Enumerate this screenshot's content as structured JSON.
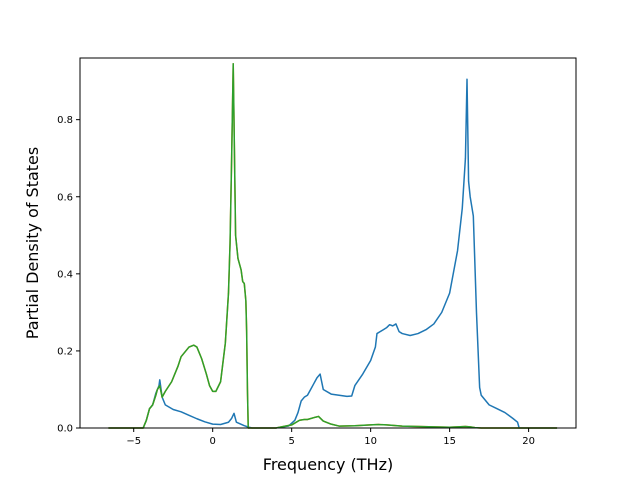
{
  "chart_data": {
    "type": "line",
    "title": "",
    "xlabel": "Frequency (THz)",
    "ylabel": "Partial Density of States",
    "xlim": [
      -8.4,
      23.0
    ],
    "ylim": [
      0,
      0.96
    ],
    "xticks": [
      -5,
      0,
      5,
      10,
      15,
      20
    ],
    "yticks": [
      0.0,
      0.2,
      0.4,
      0.6,
      0.8
    ],
    "xtick_labels": [
      "−5",
      "0",
      "5",
      "10",
      "15",
      "20"
    ],
    "ytick_labels": [
      "0.0",
      "0.2",
      "0.4",
      "0.6",
      "0.8"
    ],
    "grid": false,
    "legend": false,
    "series": [
      {
        "color": "#1f77b4",
        "x": [
          -6.6,
          -4.4,
          -4.2,
          -4.0,
          -3.8,
          -3.6,
          -3.4,
          -3.35,
          -3.2,
          -3.0,
          -2.5,
          -2.0,
          -1.5,
          -1.0,
          -0.5,
          0.0,
          0.5,
          1.0,
          1.2,
          1.35,
          1.5,
          2.0,
          2.3,
          2.5,
          3.0,
          4.0,
          4.8,
          5.2,
          5.4,
          5.6,
          5.8,
          6.0,
          6.2,
          6.4,
          6.6,
          6.8,
          7.0,
          7.5,
          8.0,
          8.5,
          8.8,
          9.0,
          9.5,
          10.0,
          10.3,
          10.4,
          10.6,
          10.8,
          11.0,
          11.2,
          11.4,
          11.6,
          11.8,
          12.0,
          12.5,
          13.0,
          13.5,
          14.0,
          14.5,
          15.0,
          15.5,
          15.8,
          16.0,
          16.1,
          16.2,
          16.3,
          16.5,
          16.7,
          16.9,
          17.0,
          17.5,
          18.0,
          18.5,
          19.0,
          19.3,
          19.4,
          20.0,
          21.8
        ],
        "y": [
          0.0,
          0.0,
          0.02,
          0.05,
          0.06,
          0.09,
          0.11,
          0.125,
          0.08,
          0.06,
          0.048,
          0.042,
          0.033,
          0.024,
          0.016,
          0.01,
          0.009,
          0.015,
          0.025,
          0.038,
          0.015,
          0.006,
          0.002,
          0.0,
          0.0,
          0.0,
          0.005,
          0.02,
          0.04,
          0.07,
          0.08,
          0.085,
          0.1,
          0.115,
          0.13,
          0.14,
          0.1,
          0.088,
          0.085,
          0.082,
          0.083,
          0.11,
          0.14,
          0.175,
          0.21,
          0.245,
          0.25,
          0.255,
          0.26,
          0.268,
          0.265,
          0.27,
          0.25,
          0.245,
          0.24,
          0.245,
          0.255,
          0.27,
          0.3,
          0.35,
          0.46,
          0.57,
          0.7,
          0.905,
          0.64,
          0.6,
          0.55,
          0.3,
          0.105,
          0.085,
          0.06,
          0.05,
          0.04,
          0.025,
          0.015,
          0.0,
          0.0,
          0.0
        ]
      },
      {
        "color": "#ff7f0e",
        "x": [
          -6.6,
          -4.4,
          -4.2,
          -4.0,
          -3.8,
          -3.6,
          -3.5,
          -3.35,
          -3.2,
          -3.0,
          -2.6,
          -2.2,
          -2.0,
          -1.5,
          -1.2,
          -1.0,
          -0.7,
          -0.4,
          -0.2,
          0.0,
          0.2,
          0.5,
          0.8,
          1.0,
          1.1,
          1.2,
          1.3,
          1.45,
          1.6,
          1.8,
          1.9,
          2.0,
          2.1,
          2.15,
          2.2,
          2.25,
          3.0,
          4.0,
          5.0,
          5.5,
          5.8,
          6.0,
          6.5,
          6.7,
          7.0,
          7.5,
          8.0,
          9.0,
          10.0,
          10.5,
          11.0,
          12.0,
          13.0,
          14.0,
          15.0,
          16.0,
          16.3,
          16.6,
          17.0,
          20.0,
          21.8
        ],
        "y": [
          0.0,
          0.0,
          0.02,
          0.05,
          0.06,
          0.085,
          0.1,
          0.11,
          0.08,
          0.095,
          0.12,
          0.16,
          0.185,
          0.21,
          0.215,
          0.21,
          0.18,
          0.14,
          0.11,
          0.095,
          0.095,
          0.12,
          0.22,
          0.35,
          0.48,
          0.7,
          0.945,
          0.5,
          0.44,
          0.41,
          0.38,
          0.375,
          0.33,
          0.25,
          0.1,
          0.0,
          0.0,
          0.0,
          0.008,
          0.02,
          0.022,
          0.022,
          0.028,
          0.03,
          0.018,
          0.01,
          0.005,
          0.006,
          0.008,
          0.009,
          0.008,
          0.005,
          0.004,
          0.003,
          0.002,
          0.004,
          0.003,
          0.001,
          0.0,
          0.0,
          0.0
        ]
      },
      {
        "color": "#2ca02c",
        "x": [
          -6.6,
          -4.4,
          -4.2,
          -4.0,
          -3.8,
          -3.6,
          -3.5,
          -3.35,
          -3.2,
          -3.0,
          -2.6,
          -2.2,
          -2.0,
          -1.5,
          -1.2,
          -1.0,
          -0.7,
          -0.4,
          -0.2,
          0.0,
          0.2,
          0.5,
          0.8,
          1.0,
          1.1,
          1.2,
          1.3,
          1.45,
          1.6,
          1.8,
          1.9,
          2.0,
          2.1,
          2.15,
          2.2,
          2.25,
          3.0,
          4.0,
          5.0,
          5.5,
          5.8,
          6.0,
          6.5,
          6.7,
          7.0,
          7.5,
          8.0,
          9.0,
          10.0,
          10.5,
          11.0,
          12.0,
          13.0,
          14.0,
          15.0,
          16.0,
          16.3,
          16.6,
          17.0,
          20.0,
          21.8
        ],
        "y": [
          0.0,
          0.0,
          0.02,
          0.05,
          0.06,
          0.085,
          0.1,
          0.11,
          0.08,
          0.095,
          0.12,
          0.16,
          0.185,
          0.21,
          0.215,
          0.21,
          0.18,
          0.14,
          0.11,
          0.095,
          0.095,
          0.12,
          0.22,
          0.35,
          0.48,
          0.7,
          0.945,
          0.5,
          0.44,
          0.41,
          0.38,
          0.375,
          0.33,
          0.25,
          0.1,
          0.0,
          0.0,
          0.0,
          0.008,
          0.02,
          0.022,
          0.022,
          0.028,
          0.03,
          0.018,
          0.01,
          0.005,
          0.006,
          0.008,
          0.009,
          0.008,
          0.005,
          0.004,
          0.003,
          0.002,
          0.004,
          0.003,
          0.001,
          0.0,
          0.0,
          0.0
        ]
      }
    ]
  }
}
